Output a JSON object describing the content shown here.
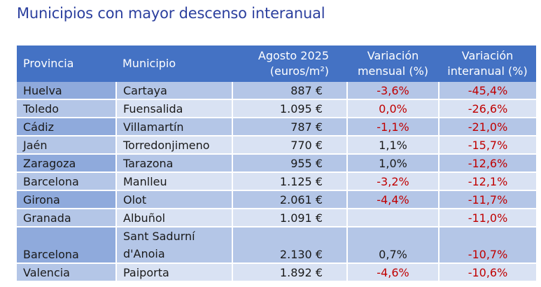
{
  "title": "Municipios con mayor descenso interanual",
  "table": {
    "headers": {
      "provincia": "Provincia",
      "municipio": "Municipio",
      "precio_l1": "Agosto 2025",
      "precio_l2": "(euros/m²)",
      "mensual_l1": "Variación",
      "mensual_l2": "mensual (%)",
      "interanual_l1": "Variación",
      "interanual_l2": "interanual (%)"
    },
    "rows": [
      {
        "provincia": "Huelva",
        "municipio": "Cartaya",
        "precio": "887 €",
        "mensual": "-3,6%",
        "interanual": "-45,4%"
      },
      {
        "provincia": "Toledo",
        "municipio": "Fuensalida",
        "precio": "1.095 €",
        "mensual": "0,0%",
        "interanual": "-26,6%"
      },
      {
        "provincia": "Cádiz",
        "municipio": "Villamartín",
        "precio": "787 €",
        "mensual": "-1,1%",
        "interanual": "-21,0%"
      },
      {
        "provincia": "Jaén",
        "municipio": "Torredonjimeno",
        "precio": "770 €",
        "mensual": "1,1%",
        "interanual": "-15,7%"
      },
      {
        "provincia": "Zaragoza",
        "municipio": "Tarazona",
        "precio": "955 €",
        "mensual": "1,0%",
        "interanual": "-12,6%"
      },
      {
        "provincia": "Barcelona",
        "municipio": "Manlleu",
        "precio": "1.125 €",
        "mensual": "-3,2%",
        "interanual": "-12,1%"
      },
      {
        "provincia": "Girona",
        "municipio": "Olot",
        "precio": "2.061 €",
        "mensual": "-4,4%",
        "interanual": "-11,7%"
      },
      {
        "provincia": "Granada",
        "municipio": "Albuñol",
        "precio": "1.091 €",
        "mensual": "",
        "interanual": "-11,0%"
      },
      {
        "provincia": "Barcelona",
        "municipio": "Sant Sadurní d'Anoia",
        "precio": "2.130 €",
        "mensual": "0,7%",
        "interanual": "-10,7%"
      },
      {
        "provincia": "Valencia",
        "municipio": "Paiporta",
        "precio": "1.892 €",
        "mensual": "-4,6%",
        "interanual": "-10,6%"
      }
    ]
  },
  "colors": {
    "title": "#2b3f9e",
    "header_bg": "#4472c4",
    "row_dark": "#b4c6e7",
    "row_light": "#d9e2f3",
    "negative": "#c00000"
  }
}
